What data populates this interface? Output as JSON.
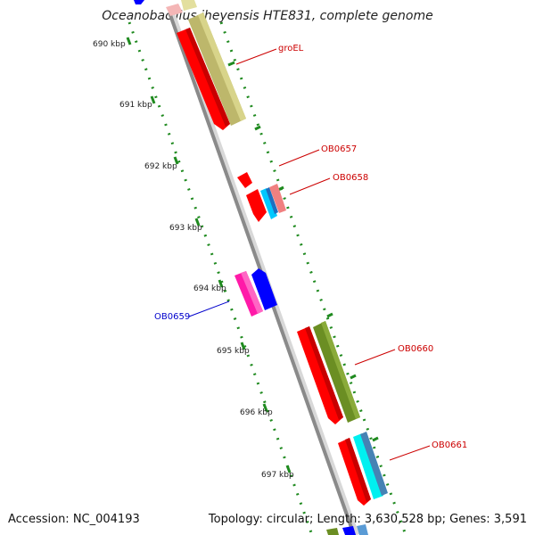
{
  "title": "Oceanobacillus iheyensis HTE831, complete genome",
  "accession": "Accession: NC_004193",
  "summary": "Topology: circular; Length: 3,630,528 bp; Genes: 3,591",
  "ticks": [
    "690 kbp",
    "691 kbp",
    "692 kbp",
    "693 kbp",
    "694 kbp",
    "695 kbp",
    "696 kbp",
    "697 kbp"
  ],
  "gene_labels": [
    "groEL",
    "OB0657",
    "OB0658",
    "OB0659",
    "OB0660",
    "OB0661"
  ],
  "colors": {
    "backbone": "#8e8e8e",
    "tick_dots": "#1f8a1f",
    "red": "#ff0000",
    "blue": "#0000ff",
    "magenta": "#ff1aa8",
    "olive": "#6b8e23",
    "khaki": "#c8c27a",
    "cyan": "#00e8e8",
    "steel": "#4682b4",
    "pink": "#f08080",
    "label_red": "#cc0000",
    "label_blue": "#0000cc"
  }
}
